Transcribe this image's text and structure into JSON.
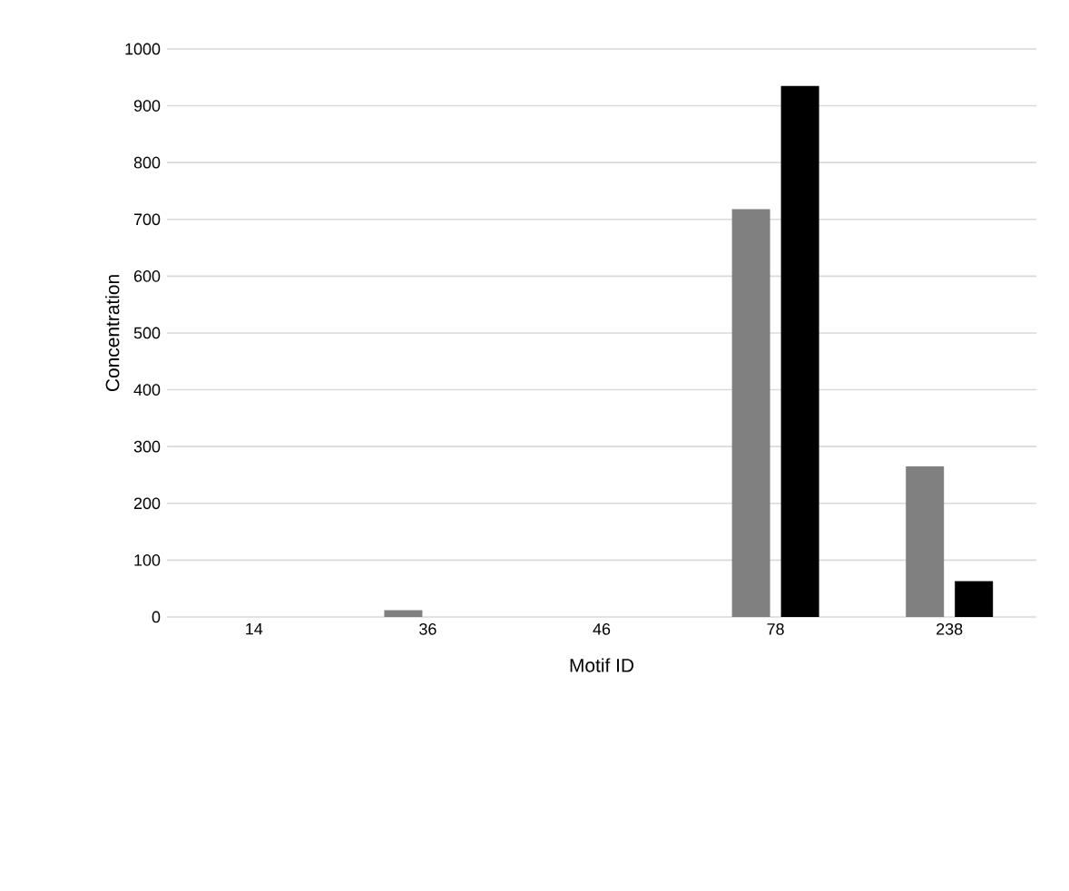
{
  "chart_data": {
    "type": "bar",
    "xlabel": "Motif ID",
    "ylabel": "Concentration",
    "categories": [
      "14",
      "36",
      "46",
      "78",
      "238"
    ],
    "series": [
      {
        "color": "#808080",
        "values": [
          0,
          12,
          0,
          718,
          265
        ]
      },
      {
        "color": "#000000",
        "values": [
          0,
          0,
          0,
          935,
          63
        ]
      }
    ],
    "ylim": [
      0,
      1000
    ],
    "yticks": [
      0,
      100,
      200,
      300,
      400,
      500,
      600,
      700,
      800,
      900,
      1000
    ],
    "grid": "y"
  }
}
